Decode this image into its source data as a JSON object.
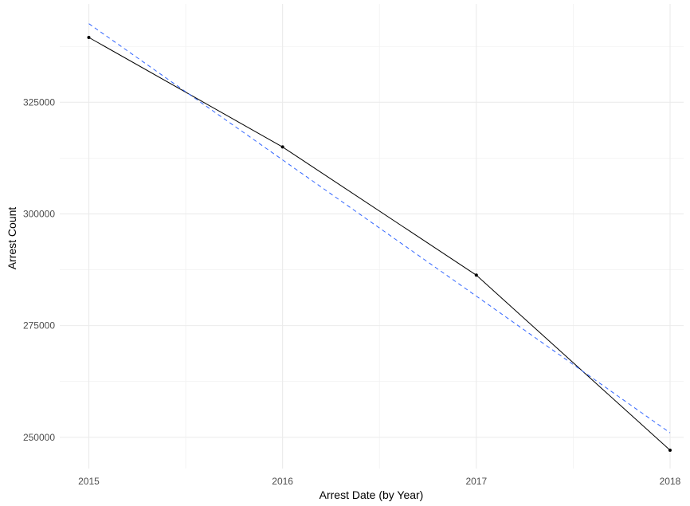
{
  "chart_data": {
    "type": "line",
    "title": "",
    "xlabel": "Arrest Date (by Year)",
    "ylabel": "Arrest Count",
    "x": [
      2015,
      2016,
      2017,
      2018
    ],
    "x_ticks": [
      "2015",
      "2016",
      "2017",
      "2018"
    ],
    "y_ticks": [
      250000,
      275000,
      300000,
      325000
    ],
    "y_tick_labels": [
      "250000",
      "275000",
      "300000",
      "325000"
    ],
    "xlim": [
      2014.85,
      2018.07
    ],
    "ylim": [
      243000,
      347000
    ],
    "grid": true,
    "legend": "none",
    "series": [
      {
        "style": "solid",
        "color": "#000000",
        "markers": true,
        "values": [
          339500,
          315000,
          286300,
          247100
        ]
      },
      {
        "style": "dashed",
        "color": "#3366ff",
        "markers": false,
        "values": [
          342600,
          312100,
          281600,
          251000
        ]
      }
    ]
  }
}
